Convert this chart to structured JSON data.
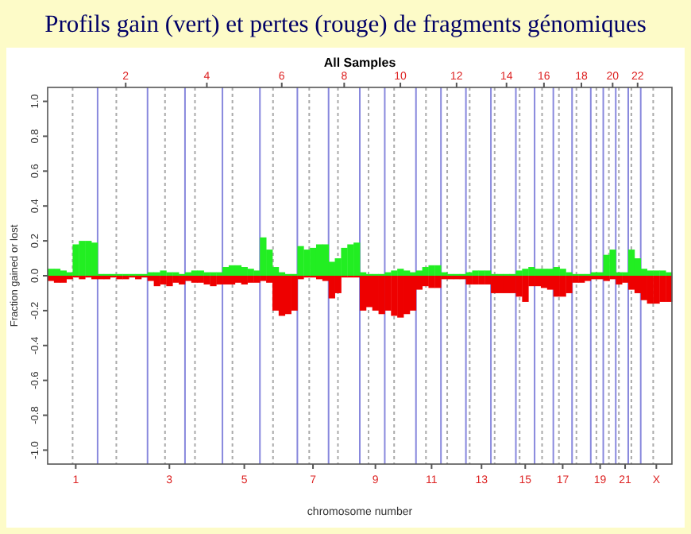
{
  "chart_data": {
    "type": "bar",
    "title": "Profils  gain (vert)  et pertes (rouge) de fragments génomiques",
    "subtitle": "All Samples",
    "xlabel": "chromosome number",
    "ylabel": "Fraction gained or lost",
    "categories": [
      null,
      null,
      null,
      null,
      "1",
      null,
      null,
      null,
      null,
      null,
      null,
      null,
      "2",
      null,
      null,
      null,
      null,
      null,
      null,
      "3",
      null,
      null,
      null,
      null,
      null,
      "4",
      null,
      null,
      null,
      null,
      null,
      "5",
      null,
      null,
      null,
      null,
      null,
      "6",
      null,
      null,
      null,
      null,
      "7",
      null,
      null,
      null,
      null,
      "8",
      null,
      null,
      null,
      null,
      "9",
      null,
      null,
      null,
      "10",
      null,
      null,
      null,
      null,
      "11",
      null,
      null,
      null,
      "12",
      null,
      null,
      null,
      "13",
      null,
      null,
      null,
      "14",
      null,
      null,
      "15",
      null,
      null,
      "16",
      null,
      null,
      "17",
      null,
      null,
      "18",
      null,
      null,
      "19",
      null,
      "20",
      null,
      "21",
      null,
      "22",
      null,
      null,
      "X",
      null,
      null
    ],
    "series": [
      {
        "color": "#22ee22",
        "values": [
          0.04,
          0.04,
          0.03,
          0.02,
          0.18,
          0.2,
          0.2,
          0.19,
          0.01,
          0.01,
          0.01,
          0.01,
          0.01,
          0.01,
          0.01,
          0.01,
          0.02,
          0.02,
          0.03,
          0.02,
          0.02,
          0.01,
          0.02,
          0.03,
          0.03,
          0.02,
          0.02,
          0.02,
          0.05,
          0.06,
          0.06,
          0.05,
          0.04,
          0.03,
          0.22,
          0.15,
          0.05,
          0.02,
          0.01,
          0.01,
          0.17,
          0.15,
          0.16,
          0.18,
          0.18,
          0.08,
          0.1,
          0.16,
          0.18,
          0.19,
          0.02,
          0.01,
          0.01,
          0.01,
          0.02,
          0.03,
          0.04,
          0.03,
          0.02,
          0.03,
          0.05,
          0.06,
          0.06,
          0.02,
          0.01,
          0.01,
          0.01,
          0.02,
          0.03,
          0.03,
          0.03,
          0.01,
          0.01,
          0.01,
          0.01,
          0.03,
          0.04,
          0.05,
          0.04,
          0.04,
          0.04,
          0.05,
          0.04,
          0.02,
          0.01,
          0.01,
          0.01,
          0.02,
          0.02,
          0.12,
          0.15,
          0.02,
          0.02,
          0.15,
          0.1,
          0.04,
          0.03,
          0.03,
          0.03,
          0.02
        ]
      },
      {
        "color": "#ee0000",
        "values": [
          -0.03,
          -0.04,
          -0.04,
          -0.02,
          -0.01,
          -0.02,
          -0.01,
          -0.02,
          -0.02,
          -0.02,
          -0.01,
          -0.02,
          -0.02,
          -0.01,
          -0.02,
          -0.01,
          -0.03,
          -0.06,
          -0.05,
          -0.06,
          -0.04,
          -0.05,
          -0.03,
          -0.04,
          -0.04,
          -0.05,
          -0.06,
          -0.05,
          -0.05,
          -0.05,
          -0.04,
          -0.05,
          -0.04,
          -0.04,
          -0.03,
          -0.04,
          -0.2,
          -0.23,
          -0.22,
          -0.2,
          -0.02,
          -0.01,
          -0.01,
          -0.02,
          -0.03,
          -0.13,
          -0.1,
          -0.01,
          -0.01,
          -0.01,
          -0.2,
          -0.18,
          -0.2,
          -0.22,
          -0.2,
          -0.23,
          -0.24,
          -0.22,
          -0.2,
          -0.08,
          -0.06,
          -0.07,
          -0.07,
          -0.02,
          -0.02,
          -0.02,
          -0.02,
          -0.05,
          -0.05,
          -0.05,
          -0.05,
          -0.1,
          -0.1,
          -0.1,
          -0.1,
          -0.12,
          -0.15,
          -0.06,
          -0.06,
          -0.07,
          -0.08,
          -0.12,
          -0.12,
          -0.1,
          -0.04,
          -0.04,
          -0.03,
          -0.02,
          -0.02,
          -0.03,
          -0.02,
          -0.05,
          -0.04,
          -0.08,
          -0.1,
          -0.14,
          -0.16,
          -0.16,
          -0.15,
          -0.15
        ]
      }
    ],
    "ylim": [
      -1.08,
      1.08
    ],
    "yticks": [
      {
        "value": -1,
        "label": "-1.0"
      },
      {
        "value": -0.8,
        "label": "-0.8"
      },
      {
        "value": -0.6,
        "label": "-0.6"
      },
      {
        "value": -0.4,
        "label": "-0.4"
      },
      {
        "value": -0.2,
        "label": "-0.2"
      },
      {
        "value": 0,
        "label": "0.0"
      },
      {
        "value": 0.2,
        "label": "0.2"
      },
      {
        "value": 0.4,
        "label": "0.4"
      },
      {
        "value": 0.6,
        "label": "0.6"
      },
      {
        "value": 0.8,
        "label": "0.8"
      },
      {
        "value": 1,
        "label": "1.0"
      }
    ],
    "stacked": true,
    "grid": "x"
  }
}
